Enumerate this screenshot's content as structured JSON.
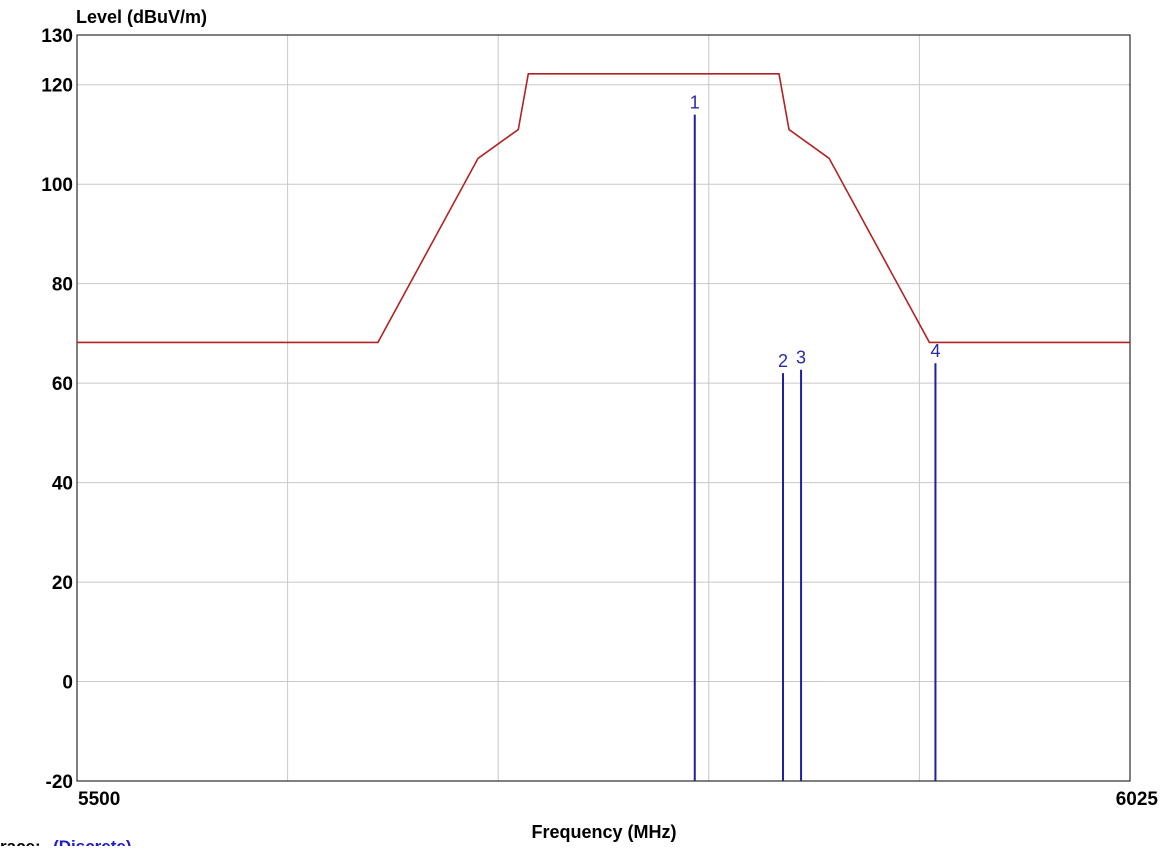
{
  "chart_data": {
    "type": "line",
    "ylabel": "Level (dBuV/m)",
    "xlabel": "Frequency (MHz)",
    "xlim": [
      5500,
      6025
    ],
    "ylim": [
      -20,
      130
    ],
    "x_tick_labels": [
      "5500",
      "6025"
    ],
    "x_grid_count": 5,
    "y_ticks": [
      -20,
      0,
      20,
      40,
      60,
      80,
      100,
      120,
      130
    ],
    "y_gridlines": [
      0,
      20,
      40,
      60,
      80,
      100,
      120
    ],
    "grid": true,
    "series": [
      {
        "kind": "limit",
        "color": "#b22222",
        "points": [
          [
            5500,
            68.2
          ],
          [
            5650,
            68.2
          ],
          [
            5700,
            105.2
          ],
          [
            5720,
            111.0
          ],
          [
            5725,
            122.2
          ],
          [
            5850,
            122.2
          ],
          [
            5855,
            111.0
          ],
          [
            5875,
            105.2
          ],
          [
            5925,
            68.2
          ],
          [
            6025,
            68.2
          ]
        ]
      },
      {
        "kind": "markers",
        "color": "#1f1fa0",
        "markers": [
          {
            "label": "1",
            "x": 5808,
            "y": 114.0
          },
          {
            "label": "2",
            "x": 5852,
            "y": 62.0
          },
          {
            "label": "3",
            "x": 5861,
            "y": 62.7
          },
          {
            "label": "4",
            "x": 5928,
            "y": 64.0
          }
        ]
      }
    ],
    "footer_note": {
      "label": "race:",
      "value": "(Discrete)"
    }
  }
}
